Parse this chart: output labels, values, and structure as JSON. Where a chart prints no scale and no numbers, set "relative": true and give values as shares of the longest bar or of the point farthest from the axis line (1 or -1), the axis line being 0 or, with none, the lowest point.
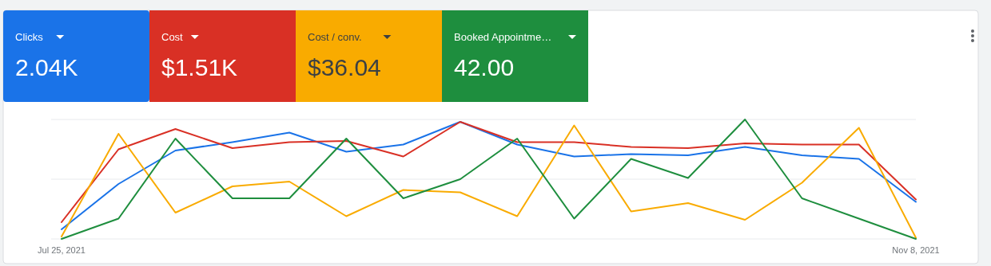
{
  "chart_data": [
    {
      "type": "other",
      "categories": [
        "Clicks",
        "Cost",
        "Cost / conv.",
        "Booked Appointme…"
      ],
      "value_labels": [
        "2.04K",
        "$1.51K",
        "$36.04",
        "42.00"
      ],
      "colors": [
        "#1a73e8",
        "#d93025",
        "#f9ab00",
        "#1e8e3e"
      ]
    },
    {
      "type": "line",
      "relative": true,
      "ref_lines": [
        {
          "axis": "y",
          "value": 0.5,
          "color": "#e8eaed"
        },
        {
          "axis": "y",
          "value": 1,
          "color": "#e8eaed"
        }
      ],
      "categories": [
        "Jul 25, 2021",
        null,
        null,
        null,
        null,
        null,
        null,
        null,
        null,
        null,
        null,
        null,
        null,
        null,
        null,
        "Nov 8, 2021"
      ],
      "series": [
        {
          "color": "#1a73e8",
          "values": [
            0.08,
            0.46,
            0.74,
            0.81,
            0.89,
            0.73,
            0.79,
            0.98,
            0.79,
            0.69,
            0.71,
            0.7,
            0.77,
            0.7,
            0.67,
            0.31
          ]
        },
        {
          "color": "#d93025",
          "values": [
            0.14,
            0.75,
            0.92,
            0.76,
            0.81,
            0.82,
            0.69,
            0.98,
            0.81,
            0.81,
            0.77,
            0.76,
            0.8,
            0.79,
            0.79,
            0.33
          ]
        },
        {
          "color": "#f9ab00",
          "values": [
            0.02,
            0.88,
            0.22,
            0.44,
            0.48,
            0.19,
            0.41,
            0.39,
            0.19,
            0.95,
            0.23,
            0.3,
            0.16,
            0.47,
            0.93,
            0.01
          ]
        },
        {
          "color": "#1e8e3e",
          "values": [
            0,
            0.17,
            0.84,
            0.34,
            0.34,
            0.84,
            0.34,
            0.5,
            0.84,
            0.17,
            0.67,
            0.51,
            1,
            0.34,
            0.17,
            0
          ]
        }
      ]
    }
  ]
}
